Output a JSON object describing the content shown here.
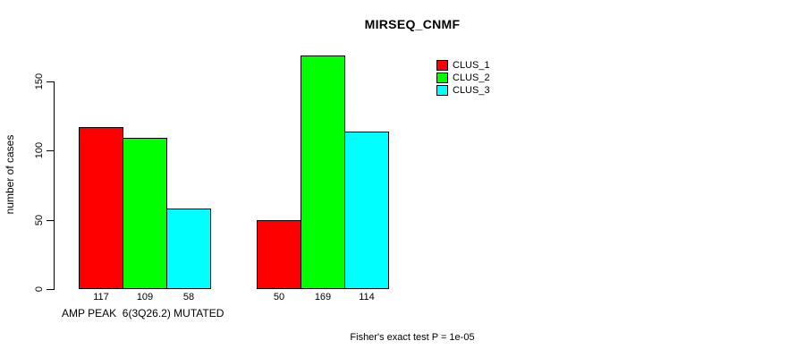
{
  "chart_data": {
    "type": "bar",
    "title": "MIRSEQ_CNMF",
    "ylabel": "number of cases",
    "xlabel": "AMP PEAK  6(3Q26.2) MUTATED",
    "annotation": "Fisher's exact test P = 1e-05",
    "categories": [
      "AMP PEAK  6(3Q26.2) MUTATED",
      ""
    ],
    "series": [
      {
        "name": "CLUS_1",
        "color": "#ff0000",
        "values": [
          117,
          50
        ]
      },
      {
        "name": "CLUS_2",
        "color": "#00ff00",
        "values": [
          109,
          169
        ]
      },
      {
        "name": "CLUS_3",
        "color": "#00ffff",
        "values": [
          58,
          114
        ]
      }
    ],
    "yticks": [
      0,
      50,
      100,
      150
    ],
    "ylim": [
      0,
      170
    ],
    "grid": false,
    "bar_value_labels_shown": true,
    "bar_border_color": "#000000",
    "legend": {
      "position": "inside-top-right",
      "entries": [
        "CLUS_1",
        "CLUS_2",
        "CLUS_3"
      ]
    },
    "layout_hints": {
      "grouped": true,
      "bars_per_group": 3,
      "xlabel_alignment": "left-under-first-group",
      "y_tick_label_rotation_deg": 90
    }
  }
}
